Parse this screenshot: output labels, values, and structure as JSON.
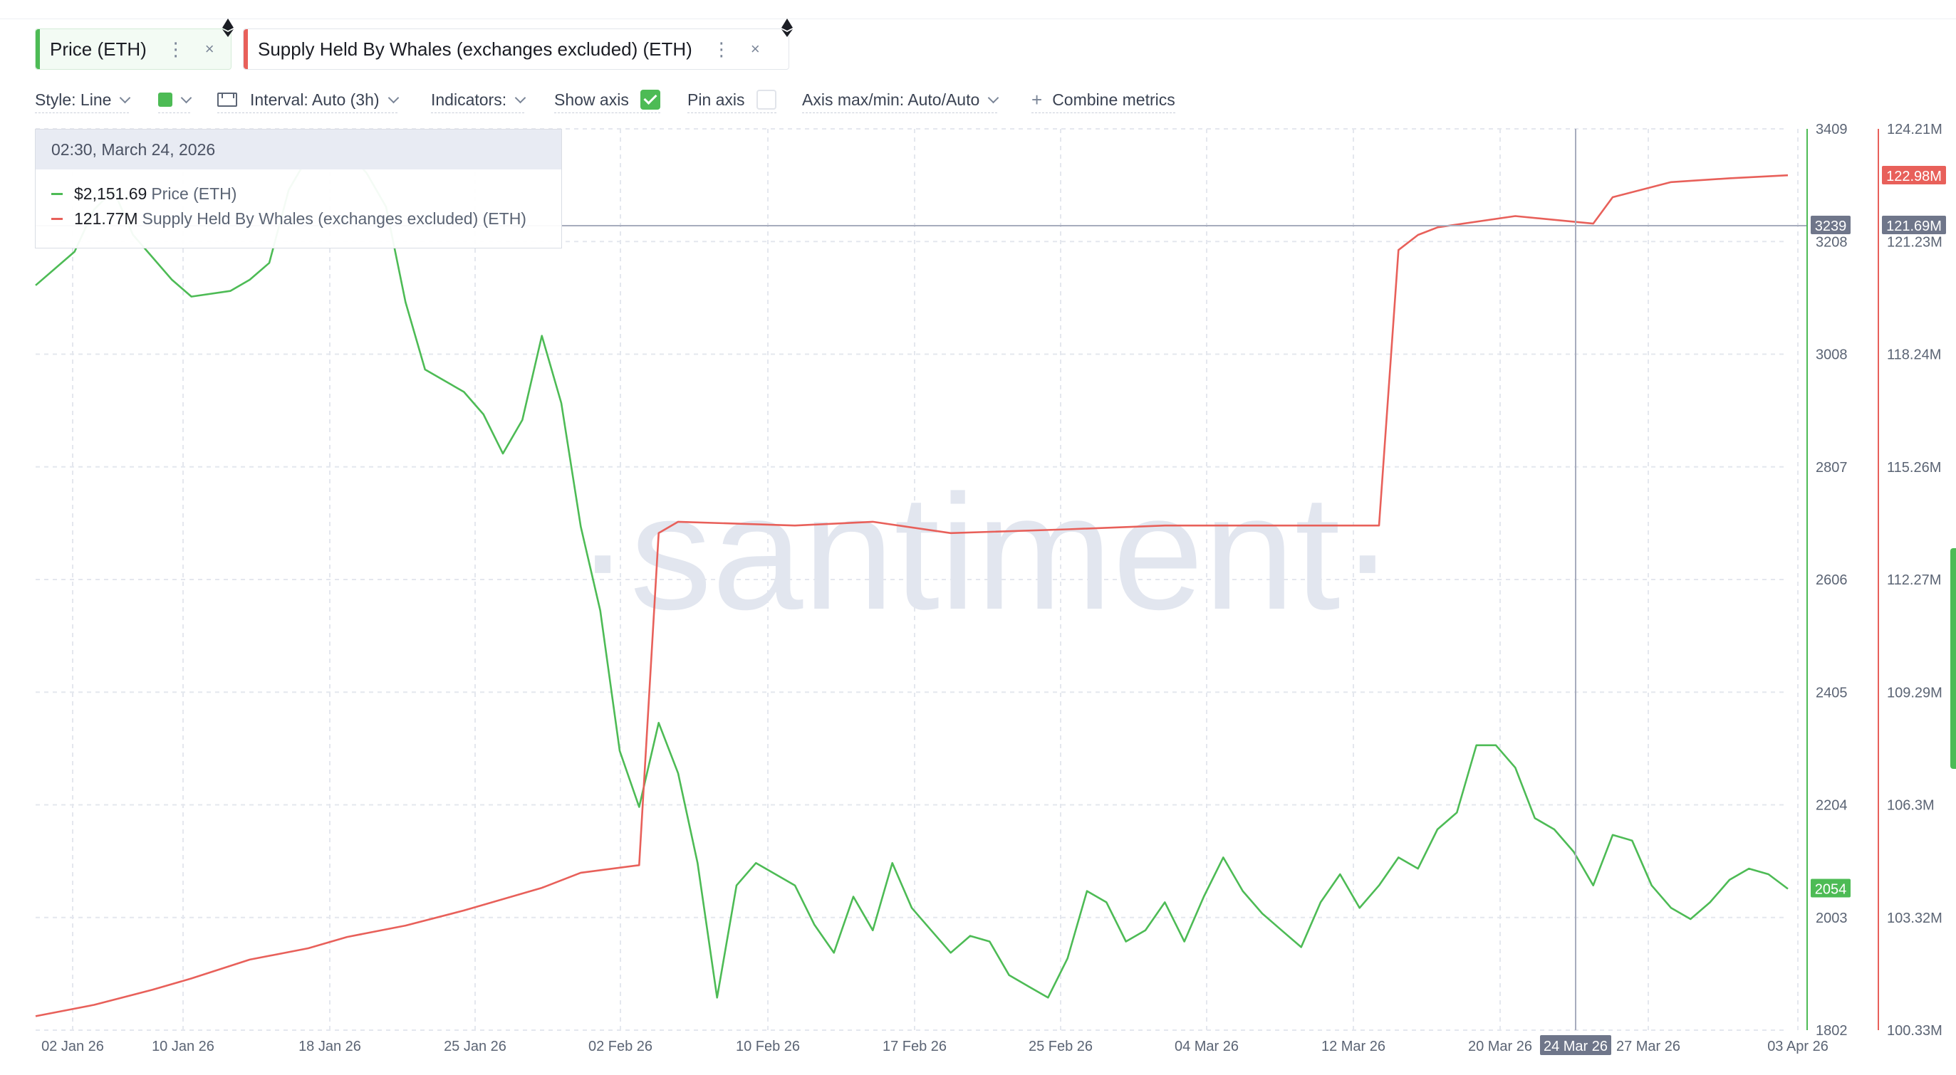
{
  "metrics": [
    {
      "label": "Price (ETH)",
      "color": "#4dbb55"
    },
    {
      "label": "Supply Held By Whales (exchanges excluded) (ETH)",
      "color": "#e8605a"
    }
  ],
  "toolbar": {
    "style_label": "Style: Line",
    "interval_label": "Interval: Auto (3h)",
    "indicators_label": "Indicators:",
    "show_axis_label": "Show axis",
    "show_axis_checked": true,
    "pin_axis_label": "Pin axis",
    "pin_axis_checked": false,
    "axis_minmax_label": "Axis max/min: Auto/Auto",
    "combine_label": "Combine metrics"
  },
  "tooltip": {
    "date": "02:30, March 24, 2026",
    "price_value": "$2,151.69",
    "price_name": "Price (ETH)",
    "whale_value": "121.77M",
    "whale_name": "Supply Held By Whales (exchanges excluded) (ETH)"
  },
  "watermark": "·santiment·",
  "chart_data": {
    "type": "line",
    "x_labels": [
      "02 Jan 26",
      "10 Jan 26",
      "18 Jan 26",
      "25 Jan 26",
      "02 Feb 26",
      "10 Feb 26",
      "17 Feb 26",
      "25 Feb 26",
      "04 Mar 26",
      "12 Mar 26",
      "20 Mar 26",
      "24 Mar 26",
      "27 Mar 26",
      "03 Apr 26"
    ],
    "x_range": [
      "2026-01-02",
      "2026-04-02"
    ],
    "crosshair_label": "24 Mar 26",
    "price_axis": {
      "ticks": [
        "3409",
        "3208",
        "3008",
        "2807",
        "2606",
        "2405",
        "2204",
        "2003",
        "1802"
      ],
      "range": [
        1802,
        3409
      ],
      "crosshair_value": "3239",
      "last_value": "2054",
      "color": "#4dbb55"
    },
    "whale_axis": {
      "ticks": [
        "124.21M",
        "121.23M",
        "118.24M",
        "115.26M",
        "112.27M",
        "109.29M",
        "106.3M",
        "103.32M",
        "100.33M"
      ],
      "range": [
        100.33,
        124.21
      ],
      "crosshair_value": "121.69M",
      "last_value": "122.98M",
      "color": "#e8605a"
    },
    "series": [
      {
        "name": "Price (ETH)",
        "axis": "price",
        "x": [
          "2026-01-02",
          "2026-01-04",
          "2026-01-05",
          "2026-01-06",
          "2026-01-07",
          "2026-01-08",
          "2026-01-09",
          "2026-01-10",
          "2026-01-12",
          "2026-01-13",
          "2026-01-14",
          "2026-01-15",
          "2026-01-16",
          "2026-01-17",
          "2026-01-18",
          "2026-01-19",
          "2026-01-20",
          "2026-01-21",
          "2026-01-22",
          "2026-01-23",
          "2026-01-24",
          "2026-01-25",
          "2026-01-26",
          "2026-01-27",
          "2026-01-28",
          "2026-01-29",
          "2026-01-30",
          "2026-01-31",
          "2026-02-01",
          "2026-02-02",
          "2026-02-03",
          "2026-02-04",
          "2026-02-05",
          "2026-02-06",
          "2026-02-07",
          "2026-02-08",
          "2026-02-09",
          "2026-02-10",
          "2026-02-11",
          "2026-02-12",
          "2026-02-13",
          "2026-02-14",
          "2026-02-15",
          "2026-02-16",
          "2026-02-17",
          "2026-02-18",
          "2026-02-19",
          "2026-02-20",
          "2026-02-21",
          "2026-02-22",
          "2026-02-23",
          "2026-02-24",
          "2026-02-25",
          "2026-02-26",
          "2026-02-27",
          "2026-02-28",
          "2026-03-01",
          "2026-03-02",
          "2026-03-03",
          "2026-03-04",
          "2026-03-05",
          "2026-03-06",
          "2026-03-07",
          "2026-03-08",
          "2026-03-09",
          "2026-03-10",
          "2026-03-11",
          "2026-03-12",
          "2026-03-13",
          "2026-03-14",
          "2026-03-15",
          "2026-03-16",
          "2026-03-17",
          "2026-03-18",
          "2026-03-19",
          "2026-03-20",
          "2026-03-21",
          "2026-03-22",
          "2026-03-23",
          "2026-03-24",
          "2026-03-25",
          "2026-03-26",
          "2026-03-27",
          "2026-03-28",
          "2026-03-29",
          "2026-03-30",
          "2026-03-31",
          "2026-04-01",
          "2026-04-02"
        ],
        "y": [
          3130,
          3190,
          3265,
          3300,
          3220,
          3180,
          3140,
          3110,
          3120,
          3140,
          3170,
          3300,
          3360,
          3350,
          3370,
          3330,
          3270,
          3100,
          2980,
          2960,
          2940,
          2900,
          2830,
          2890,
          3040,
          2920,
          2700,
          2550,
          2300,
          2200,
          2350,
          2260,
          2100,
          1860,
          2060,
          2100,
          2080,
          2060,
          1990,
          1940,
          2040,
          1980,
          2100,
          2020,
          1980,
          1940,
          1970,
          1960,
          1900,
          1880,
          1860,
          1930,
          2050,
          2030,
          1960,
          1980,
          2030,
          1960,
          2040,
          2110,
          2050,
          2010,
          1980,
          1950,
          2030,
          2080,
          2020,
          2060,
          2110,
          2090,
          2160,
          2190,
          2310,
          2310,
          2270,
          2180,
          2160,
          2120,
          2060,
          2150,
          2140,
          2060,
          2020,
          2000,
          2030,
          2070,
          2090,
          2080,
          2054
        ]
      },
      {
        "name": "Supply Held By Whales (exchanges excluded) (ETH)",
        "axis": "whale",
        "x": [
          "2026-01-02",
          "2026-01-05",
          "2026-01-08",
          "2026-01-10",
          "2026-01-13",
          "2026-01-16",
          "2026-01-18",
          "2026-01-21",
          "2026-01-24",
          "2026-01-26",
          "2026-01-28",
          "2026-01-30",
          "2026-02-02",
          "2026-02-03",
          "2026-02-04",
          "2026-02-10",
          "2026-02-14",
          "2026-02-18",
          "2026-02-24",
          "2026-03-01",
          "2026-03-07",
          "2026-03-12",
          "2026-03-13",
          "2026-03-14",
          "2026-03-15",
          "2026-03-19",
          "2026-03-23",
          "2026-03-24",
          "2026-03-27",
          "2026-03-30",
          "2026-04-02"
        ],
        "y": [
          100.7,
          101.0,
          101.4,
          101.7,
          102.2,
          102.5,
          102.8,
          103.1,
          103.5,
          103.8,
          104.1,
          104.5,
          104.7,
          113.5,
          113.8,
          113.7,
          113.8,
          113.5,
          113.6,
          113.7,
          113.7,
          113.7,
          121.0,
          121.4,
          121.6,
          121.9,
          121.7,
          122.4,
          122.8,
          122.9,
          122.98
        ]
      }
    ]
  }
}
